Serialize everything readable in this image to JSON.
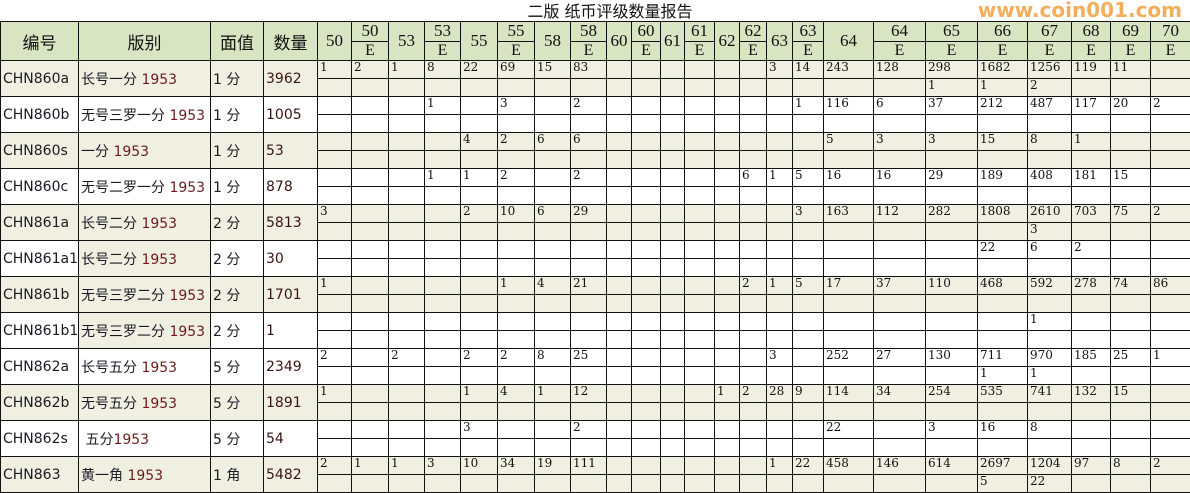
{
  "title": "二版 纸币评级数量报告",
  "watermark": "www.coin001.com",
  "colors": {
    "header_bg": "#d9e4c2",
    "row_shade": "#f0f0e2",
    "watermark": "#f2a040"
  },
  "headers": {
    "code": "编号",
    "variety": "版别",
    "denom": "面值",
    "qty": "数量"
  },
  "grade_columns": [
    {
      "grade": "50",
      "suffix": ""
    },
    {
      "grade": "50",
      "suffix": "E"
    },
    {
      "grade": "53",
      "suffix": ""
    },
    {
      "grade": "53",
      "suffix": "E"
    },
    {
      "grade": "55",
      "suffix": ""
    },
    {
      "grade": "55",
      "suffix": "E"
    },
    {
      "grade": "58",
      "suffix": ""
    },
    {
      "grade": "58",
      "suffix": "E"
    },
    {
      "grade": "60",
      "suffix": ""
    },
    {
      "grade": "60",
      "suffix": "E"
    },
    {
      "grade": "61",
      "suffix": ""
    },
    {
      "grade": "61",
      "suffix": "E"
    },
    {
      "grade": "62",
      "suffix": ""
    },
    {
      "grade": "62",
      "suffix": "E"
    },
    {
      "grade": "63",
      "suffix": ""
    },
    {
      "grade": "63",
      "suffix": "E"
    },
    {
      "grade": "64",
      "suffix": ""
    },
    {
      "grade": "64",
      "suffix": "E"
    },
    {
      "grade": "65",
      "suffix": "E"
    },
    {
      "grade": "66",
      "suffix": "E"
    },
    {
      "grade": "67",
      "suffix": "E"
    },
    {
      "grade": "68",
      "suffix": "E"
    },
    {
      "grade": "69",
      "suffix": "E"
    },
    {
      "grade": "70",
      "suffix": "E"
    }
  ],
  "rows": [
    {
      "code": "CHN860a",
      "name": "长号一分 ",
      "year": "1953",
      "denom": "1 分",
      "qty": "3962",
      "shade": true,
      "top": [
        "1",
        "2",
        "1",
        "8",
        "22",
        "69",
        "15",
        "83",
        "",
        "",
        "",
        "",
        "",
        "",
        "3",
        "14",
        "243",
        "128",
        "298",
        "1682",
        "1256",
        "119",
        "11",
        ""
      ],
      "bottom": [
        "",
        "",
        "",
        "",
        "",
        "",
        "",
        "",
        "",
        "",
        "",
        "",
        "",
        "",
        "",
        "",
        "",
        "",
        "1",
        "1",
        "2",
        "",
        "",
        ""
      ]
    },
    {
      "code": "CHN860b",
      "name": "无号三罗一分 ",
      "year": "1953",
      "denom": "1 分",
      "qty": "1005",
      "shade": false,
      "top": [
        "",
        "",
        "",
        "1",
        "",
        "3",
        "",
        "2",
        "",
        "",
        "",
        "",
        "",
        "",
        "",
        "1",
        "116",
        "6",
        "37",
        "212",
        "487",
        "117",
        "20",
        "2"
      ],
      "bottom": [
        "",
        "",
        "",
        "",
        "",
        "",
        "",
        "",
        "",
        "",
        "",
        "",
        "",
        "",
        "",
        "",
        "",
        "",
        "",
        "",
        "",
        "",
        "",
        ""
      ]
    },
    {
      "code": "CHN860s",
      "name": "一分 ",
      "year": "1953",
      "denom": "1 分",
      "qty": "53",
      "shade": true,
      "top": [
        "",
        "",
        "",
        "",
        "4",
        "2",
        "6",
        "6",
        "",
        "",
        "",
        "",
        "",
        "",
        "",
        "",
        "5",
        "3",
        "3",
        "15",
        "8",
        "1",
        "",
        ""
      ],
      "bottom": [
        "",
        "",
        "",
        "",
        "",
        "",
        "",
        "",
        "",
        "",
        "",
        "",
        "",
        "",
        "",
        "",
        "",
        "",
        "",
        "",
        "",
        "",
        "",
        ""
      ]
    },
    {
      "code": "CHN860c",
      "name": "无号二罗一分 ",
      "year": "1953",
      "denom": "1 分",
      "qty": "878",
      "shade": false,
      "top": [
        "",
        "",
        "",
        "1",
        "1",
        "2",
        "",
        "2",
        "",
        "",
        "",
        "",
        "",
        "6",
        "1",
        "5",
        "16",
        "16",
        "29",
        "189",
        "408",
        "181",
        "15",
        ""
      ],
      "bottom": [
        "",
        "",
        "",
        "",
        "",
        "",
        "",
        "",
        "",
        "",
        "",
        "",
        "",
        "",
        "",
        "",
        "",
        "",
        "",
        "",
        "",
        "",
        "",
        ""
      ]
    },
    {
      "code": "CHN861a",
      "name": "长号二分 ",
      "year": "1953",
      "denom": "2 分",
      "qty": "5813",
      "shade": true,
      "top": [
        "3",
        "",
        "",
        "",
        "2",
        "10",
        "6",
        "29",
        "",
        "",
        "",
        "",
        "",
        "",
        "",
        "3",
        "163",
        "112",
        "282",
        "1808",
        "2610",
        "703",
        "75",
        "2"
      ],
      "bottom": [
        "",
        "",
        "",
        "",
        "",
        "",
        "",
        "",
        "",
        "",
        "",
        "",
        "",
        "",
        "",
        "",
        "",
        "",
        "",
        "",
        "3",
        "",
        "",
        ""
      ]
    },
    {
      "code": "CHN861a1",
      "name": "长号二分 ",
      "year": "1953",
      "denom": "2 分",
      "qty": "30",
      "shade": false,
      "shade_name": true,
      "top": [
        "",
        "",
        "",
        "",
        "",
        "",
        "",
        "",
        "",
        "",
        "",
        "",
        "",
        "",
        "",
        "",
        "",
        "",
        "",
        "22",
        "6",
        "2",
        "",
        ""
      ],
      "bottom": [
        "",
        "",
        "",
        "",
        "",
        "",
        "",
        "",
        "",
        "",
        "",
        "",
        "",
        "",
        "",
        "",
        "",
        "",
        "",
        "",
        "",
        "",
        "",
        ""
      ]
    },
    {
      "code": "CHN861b",
      "name": "无号三罗二分 ",
      "year": "1953",
      "denom": "2 分",
      "qty": "1701",
      "shade": true,
      "top": [
        "1",
        "",
        "",
        "",
        "",
        "1",
        "4",
        "21",
        "",
        "",
        "",
        "",
        "",
        "2",
        "1",
        "5",
        "17",
        "37",
        "110",
        "468",
        "592",
        "278",
        "74",
        "86"
      ],
      "bottom": [
        "",
        "",
        "",
        "",
        "",
        "",
        "",
        "",
        "",
        "",
        "",
        "",
        "",
        "",
        "",
        "",
        "",
        "",
        "",
        "",
        "",
        "",
        "",
        ""
      ]
    },
    {
      "code": "CHN861b1",
      "name": "无号三罗二分 ",
      "year": "1953",
      "denom": "2 分",
      "qty": "1",
      "shade": false,
      "shade_name": true,
      "top": [
        "",
        "",
        "",
        "",
        "",
        "",
        "",
        "",
        "",
        "",
        "",
        "",
        "",
        "",
        "",
        "",
        "",
        "",
        "",
        "",
        "1",
        "",
        "",
        ""
      ],
      "bottom": [
        "",
        "",
        "",
        "",
        "",
        "",
        "",
        "",
        "",
        "",
        "",
        "",
        "",
        "",
        "",
        "",
        "",
        "",
        "",
        "",
        "",
        "",
        "",
        ""
      ]
    },
    {
      "code": "CHN862a",
      "name": "长号五分 ",
      "year": "1953",
      "denom": "5 分",
      "qty": "2349",
      "shade": false,
      "top": [
        "2",
        "",
        "2",
        "",
        "2",
        "2",
        "8",
        "25",
        "",
        "",
        "",
        "",
        "",
        "",
        "3",
        "",
        "252",
        "27",
        "130",
        "711",
        "970",
        "185",
        "25",
        "1"
      ],
      "bottom": [
        "",
        "",
        "",
        "",
        "",
        "",
        "",
        "",
        "",
        "",
        "",
        "",
        "",
        "",
        "",
        "",
        "",
        "",
        "",
        "1",
        "1",
        "",
        "",
        ""
      ]
    },
    {
      "code": "CHN862b",
      "name": "无号五分 ",
      "year": "1953",
      "denom": "5 分",
      "qty": "1891",
      "shade": true,
      "top": [
        "1",
        "",
        "",
        "",
        "1",
        "4",
        "1",
        "12",
        "",
        "",
        "",
        "",
        "1",
        "2",
        "28",
        "9",
        "114",
        "34",
        "254",
        "535",
        "741",
        "132",
        "15",
        ""
      ],
      "bottom": [
        "",
        "",
        "",
        "",
        "",
        "",
        "",
        "",
        "",
        "",
        "",
        "",
        "",
        "",
        "",
        "",
        "",
        "",
        "",
        "",
        "",
        "",
        "",
        ""
      ]
    },
    {
      "code": "CHN862s",
      "name": " 五分",
      "year": "1953",
      "denom": "5 分",
      "qty": "54",
      "shade": false,
      "top": [
        "",
        "",
        "",
        "",
        "3",
        "",
        "",
        "2",
        "",
        "",
        "",
        "",
        "",
        "",
        "",
        "",
        "22",
        "",
        "3",
        "16",
        "8",
        "",
        "",
        ""
      ],
      "bottom": [
        "",
        "",
        "",
        "",
        "",
        "",
        "",
        "",
        "",
        "",
        "",
        "",
        "",
        "",
        "",
        "",
        "",
        "",
        "",
        "",
        "",
        "",
        "",
        ""
      ]
    },
    {
      "code": "CHN863",
      "name": "黄一角 ",
      "year": "1953",
      "denom": "1 角",
      "qty": "5482",
      "shade": true,
      "top": [
        "2",
        "1",
        "1",
        "3",
        "10",
        "34",
        "19",
        "111",
        "",
        "",
        "",
        "",
        "",
        "",
        "1",
        "22",
        "458",
        "146",
        "614",
        "2697",
        "1204",
        "97",
        "8",
        "2"
      ],
      "bottom": [
        "",
        "",
        "",
        "",
        "",
        "",
        "",
        "",
        "",
        "",
        "",
        "",
        "",
        "",
        "",
        "",
        "",
        "",
        "",
        "5",
        "22",
        "",
        "",
        ""
      ]
    }
  ]
}
